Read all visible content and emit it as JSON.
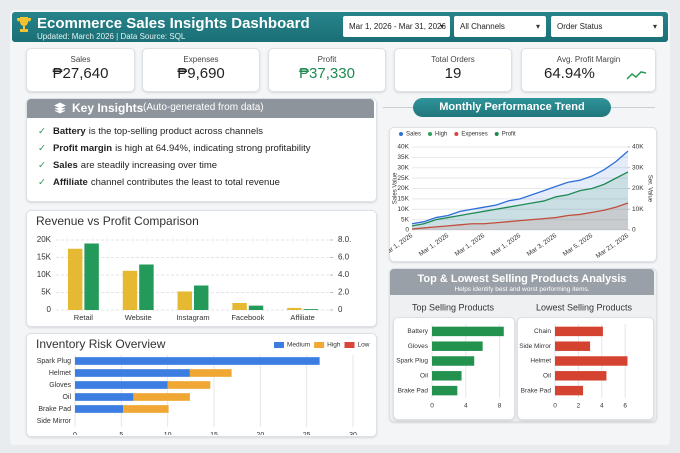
{
  "header": {
    "title": "Ecommerce Sales Insights Dashboard",
    "subtitle": "Updated: March 2026 | Data Source: SQL",
    "filters": [
      "Mar 1, 2026 - Mar 31, 2026",
      "All Channels",
      "Order Status"
    ]
  },
  "kpis": [
    {
      "label": "Sales",
      "value": "₱27,640"
    },
    {
      "label": "Expenses",
      "value": "₱9,690"
    },
    {
      "label": "Profit",
      "value": "₱37,330"
    },
    {
      "label": "Total Orders",
      "value": "19"
    },
    {
      "label": "Avg. Profit Margin",
      "value": "64.94%"
    }
  ],
  "insights": {
    "title": "Key Insights",
    "note": "(Auto-generated from data)",
    "items": [
      {
        "bold": "Battery",
        "text": "is the top-selling product across channels"
      },
      {
        "bold": "Profit margin",
        "text": "is high at 64.94%, indicating strong profitability"
      },
      {
        "bold": "Sales",
        "text": "are steadily increasing over time"
      },
      {
        "bold": "Affiliate",
        "text": "channel contributes the least to total revenue"
      }
    ]
  },
  "products_panel": {
    "title": "Top & Lowest Selling Products Analysis",
    "subtitle": "Helps identify best and worst performing items."
  },
  "chart_data": [
    {
      "type": "bar",
      "title": "Revenue vs Profit Comparison",
      "categories": [
        "Retail",
        "Website",
        "Instagram",
        "Facebook",
        "Affiliate"
      ],
      "series": [
        {
          "color": "#e6b932",
          "values": [
            17500,
            11200,
            5300,
            2000,
            600
          ]
        },
        {
          "color": "#239a5a",
          "axis": "y2",
          "values": [
            7.6,
            5.2,
            2.8,
            0.5,
            0.1
          ]
        }
      ],
      "ylim": [
        0,
        20000
      ],
      "yticks": [
        0,
        {
          "value": 5000,
          "label": "5K"
        },
        {
          "value": 10000,
          "label": "10K"
        },
        {
          "value": 15000,
          "label": "15K"
        },
        {
          "value": 20000,
          "label": "20K"
        }
      ],
      "y2lim": [
        0,
        8
      ],
      "y2ticks": [
        0,
        {
          "value": 2,
          "label": "2.0"
        },
        {
          "value": 4,
          "label": "4.0"
        },
        {
          "value": 6,
          "label": "6.0"
        },
        {
          "value": 8,
          "label": "8.0."
        }
      ],
      "grid": true
    },
    {
      "type": "bar",
      "orientation": "horizontal",
      "stacked": true,
      "title": "Inventory Risk Overview",
      "categories": [
        "Spark Plug",
        "Helmet",
        "Gloves",
        "Oil",
        "Brake Pad",
        "Side Mirror"
      ],
      "series": [
        {
          "name": "Medium",
          "color": "#3b7de0",
          "values": [
            26.4,
            12.4,
            10,
            6.3,
            5.2,
            0
          ]
        },
        {
          "name": "High",
          "color": "#f0a733",
          "values": [
            0,
            4.5,
            4.6,
            6.1,
            4.9,
            0
          ]
        },
        {
          "name": "Low",
          "color": "#d9453a",
          "values": [
            0,
            0,
            0,
            0,
            0,
            0
          ]
        }
      ],
      "xlim": [
        0,
        30
      ],
      "xticks": [
        0,
        5,
        10,
        15,
        20,
        25,
        30
      ],
      "grid": true,
      "legend": "top-right"
    },
    {
      "type": "line",
      "title": "Monthly Performance Trend",
      "categories": [
        "Mar 1, 2026",
        null,
        null,
        "Mar 1, 2026",
        null,
        null,
        "Mar 1, 2026",
        null,
        null,
        "Mar 1, 2026",
        null,
        null,
        "Mar 3, 2026",
        null,
        null,
        "Mar 5, 2026",
        null,
        null,
        "Mar 21, 2026"
      ],
      "series": [
        {
          "name": "Sales",
          "color": "#2f6fd6",
          "values": [
            3000,
            4000,
            6000,
            7000,
            9000,
            10000,
            11000,
            12000,
            14000,
            15000,
            17000,
            19000,
            21000,
            23000,
            24000,
            26000,
            29000,
            33000,
            38000
          ]
        },
        {
          "name": "High",
          "color": "#2aa05a",
          "values": [
            null,
            null,
            null,
            null,
            null,
            null,
            null,
            null,
            null,
            null,
            null,
            null,
            null,
            null,
            null,
            null,
            null,
            null,
            null
          ]
        },
        {
          "name": "Expenses",
          "color": "#d9453a",
          "values": [
            500,
            1000,
            1500,
            2000,
            2500,
            3000,
            3000,
            3500,
            4000,
            4500,
            5000,
            5500,
            6000,
            7000,
            7500,
            8500,
            9500,
            11000,
            13000
          ]
        },
        {
          "name": "Profit",
          "color": "#1f8a52",
          "axis": "y2",
          "values": [
            2000,
            3000,
            5000,
            6000,
            7000,
            8000,
            9000,
            10000,
            11000,
            12000,
            13000,
            14000,
            16000,
            17000,
            19000,
            20000,
            22000,
            25000,
            28000
          ]
        }
      ],
      "ylabel": "Sales Value",
      "y2label": "Ser. Value",
      "ylim": [
        0,
        40000
      ],
      "yticks": [
        0,
        {
          "value": 5000,
          "label": "5K"
        },
        {
          "value": 10000,
          "label": "10K"
        },
        {
          "value": 15000,
          "label": "15K"
        },
        {
          "value": 20000,
          "label": "20K"
        },
        {
          "value": 25000,
          "label": "25K"
        },
        {
          "value": 30000,
          "label": "30K"
        },
        {
          "value": 35000,
          "label": "35K"
        },
        {
          "value": 40000,
          "label": "40K"
        }
      ],
      "y2lim": [
        0,
        40000
      ],
      "y2ticks": [
        0,
        {
          "value": 10000,
          "label": "10K"
        },
        {
          "value": 20000,
          "label": "20K"
        },
        {
          "value": 30000,
          "label": "30K"
        },
        {
          "value": 40000,
          "label": "40K"
        }
      ],
      "grid": true,
      "area": true,
      "legend": "top"
    },
    {
      "type": "bar",
      "orientation": "horizontal",
      "title": "Top Selling Products",
      "categories": [
        "Battery",
        "Gloves",
        "Spark Plug",
        "Oil",
        "Brake Pad"
      ],
      "values": [
        8.5,
        6,
        5,
        3.5,
        3
      ],
      "color": "#23924f",
      "xlim": [
        0,
        9
      ],
      "xticks": [
        0,
        4,
        8
      ],
      "grid": true
    },
    {
      "type": "bar",
      "orientation": "horizontal",
      "title": "Lowest Selling Products",
      "categories": [
        "Chain",
        "Side Mirror",
        "Helmet",
        "Oil",
        "Brake Pad"
      ],
      "values": [
        4.1,
        3,
        6.2,
        4.4,
        2.4
      ],
      "color": "#d4432f",
      "xlim": [
        0,
        6.5
      ],
      "xticks": [
        0,
        2,
        4,
        6
      ],
      "grid": true
    }
  ]
}
